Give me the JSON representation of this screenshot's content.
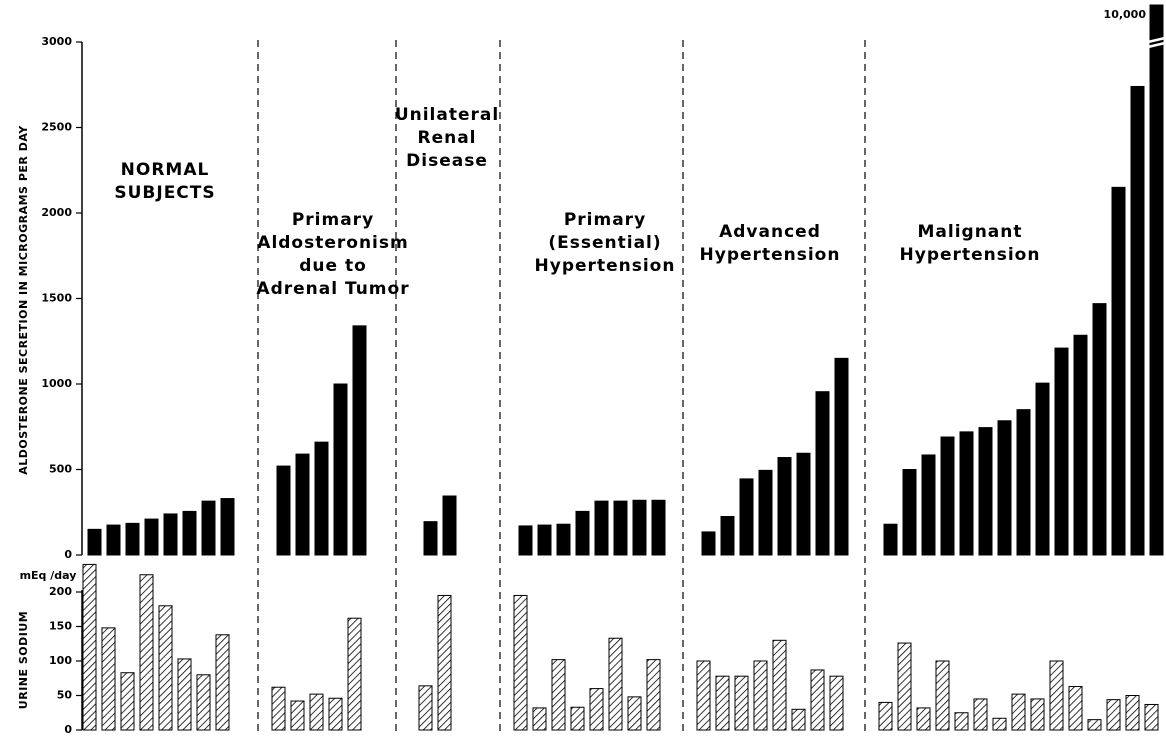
{
  "chart_data": [
    {
      "type": "bar",
      "y_label": "ALDOSTERONE SECRETION IN MICROGRAMS PER DAY",
      "ylim": [
        0,
        3000
      ],
      "yticks": [
        0,
        500,
        1000,
        1500,
        2000,
        2500,
        3000
      ],
      "color": "#000000",
      "groups": [
        {
          "label_lines": [
            "NORMAL",
            "SUBJECTS"
          ],
          "values": [
            150,
            175,
            185,
            210,
            240,
            255,
            315,
            330
          ]
        },
        {
          "label_lines": [
            "Primary",
            "Aldosteronism",
            "due to",
            "Adrenal   Tumor"
          ],
          "values": [
            520,
            590,
            660,
            1000,
            1340
          ]
        },
        {
          "label_lines": [
            "Unilateral",
            "Renal",
            "Disease"
          ],
          "values": [
            195,
            345
          ]
        },
        {
          "label_lines": [
            "Primary",
            "(Essential)",
            "Hypertension"
          ],
          "values": [
            170,
            175,
            180,
            255,
            315,
            315,
            320,
            320
          ]
        },
        {
          "label_lines": [
            "Advanced",
            "Hypertension"
          ],
          "values": [
            135,
            225,
            445,
            495,
            570,
            595,
            955,
            1150
          ]
        },
        {
          "label_lines": [
            "Malignant",
            "Hypertension"
          ],
          "values": [
            180,
            500,
            585,
            690,
            720,
            745,
            785,
            850,
            1005,
            1210,
            1285,
            1470,
            2150,
            2740,
            10000
          ],
          "value_labels": [
            null,
            null,
            null,
            null,
            null,
            null,
            null,
            null,
            null,
            null,
            null,
            null,
            null,
            null,
            "10,000"
          ]
        }
      ]
    },
    {
      "type": "bar",
      "y_label": "URINE SODIUM",
      "y_unit": "mEq /day",
      "ylim": [
        0,
        250
      ],
      "yticks": [
        0,
        50,
        100,
        150,
        200
      ],
      "pattern": "hatched",
      "groups": [
        {
          "values": [
            240,
            148,
            83,
            225,
            180,
            103,
            80,
            138
          ]
        },
        {
          "values": [
            62,
            42,
            52,
            46,
            162
          ]
        },
        {
          "values": [
            64,
            195
          ]
        },
        {
          "values": [
            195,
            32,
            102,
            33,
            60,
            133,
            48,
            102
          ]
        },
        {
          "values": [
            100,
            78,
            78,
            100,
            130,
            30,
            87,
            78
          ]
        },
        {
          "values": [
            40,
            126,
            32,
            100,
            25,
            45,
            17,
            52,
            45,
            100,
            63,
            15,
            44,
            50,
            37
          ]
        }
      ]
    }
  ]
}
